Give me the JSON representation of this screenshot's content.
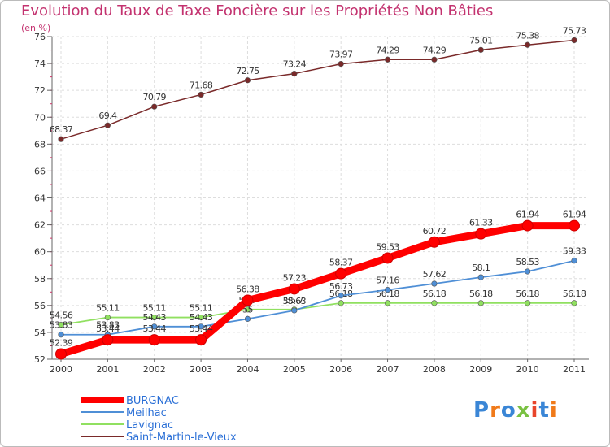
{
  "chart_data": {
    "type": "line",
    "title": "Evolution du Taux de Taxe Foncière sur les Propriétés Non Bâties",
    "ylabel": "(en %)",
    "xlabel": "",
    "x": [
      "2000",
      "2001",
      "2002",
      "2003",
      "2004",
      "2005",
      "2006",
      "2007",
      "2008",
      "2009",
      "2010",
      "2011"
    ],
    "ylim": [
      52,
      76
    ],
    "yticks": [
      "52",
      "54",
      "56",
      "58",
      "60",
      "62",
      "64",
      "66",
      "68",
      "70",
      "72",
      "74",
      "76"
    ],
    "grid": true,
    "legend": "bottom-left",
    "series": [
      {
        "name": "BURGNAC",
        "color": "#ff0000",
        "values": [
          52.39,
          53.44,
          53.44,
          53.44,
          56.38,
          57.23,
          58.37,
          59.53,
          60.72,
          61.33,
          61.94,
          61.94
        ],
        "labels": [
          "52.39",
          "53.44",
          "53.44",
          "53.44",
          "56.38",
          "57.23",
          "58.37",
          "59.53",
          "60.72",
          "61.33",
          "61.94",
          "61.94"
        ]
      },
      {
        "name": "Meilhac",
        "color": "#4f8fd6",
        "values": [
          53.83,
          53.83,
          54.43,
          54.43,
          55.0,
          55.63,
          56.73,
          57.16,
          57.62,
          58.1,
          58.53,
          59.33
        ],
        "labels": [
          "53.83",
          "53.83",
          "54.43",
          "54.43",
          "55",
          "55.63",
          "56.73",
          "57.16",
          "57.62",
          "58.1",
          "58.53",
          "59.33"
        ]
      },
      {
        "name": "Lavignac",
        "color": "#90e060",
        "values": [
          54.56,
          55.11,
          55.11,
          55.11,
          55.7,
          55.7,
          56.18,
          56.18,
          56.18,
          56.18,
          56.18,
          56.18
        ],
        "labels": [
          "54.56",
          "55.11",
          "55.11",
          "55.11",
          "55.7",
          "55.7",
          "56.18",
          "56.18",
          "56.18",
          "56.18",
          "56.18",
          "56.18"
        ]
      },
      {
        "name": "Saint-Martin-le-Vieux",
        "color": "#7a2a2a",
        "values": [
          68.37,
          69.4,
          70.79,
          71.68,
          72.75,
          73.24,
          73.97,
          74.29,
          74.29,
          75.01,
          75.38,
          75.73
        ],
        "labels": [
          "68.37",
          "69.4",
          "70.79",
          "71.68",
          "72.75",
          "73.24",
          "73.97",
          "74.29",
          "74.29",
          "75.01",
          "75.38",
          "75.73"
        ]
      }
    ]
  },
  "brand": {
    "text": "Proxiti",
    "colors": [
      "#3a86d6",
      "#f07a1a",
      "#3a86d6",
      "#7ac142",
      "#e8452c",
      "#3a86d6",
      "#f07a1a"
    ]
  }
}
